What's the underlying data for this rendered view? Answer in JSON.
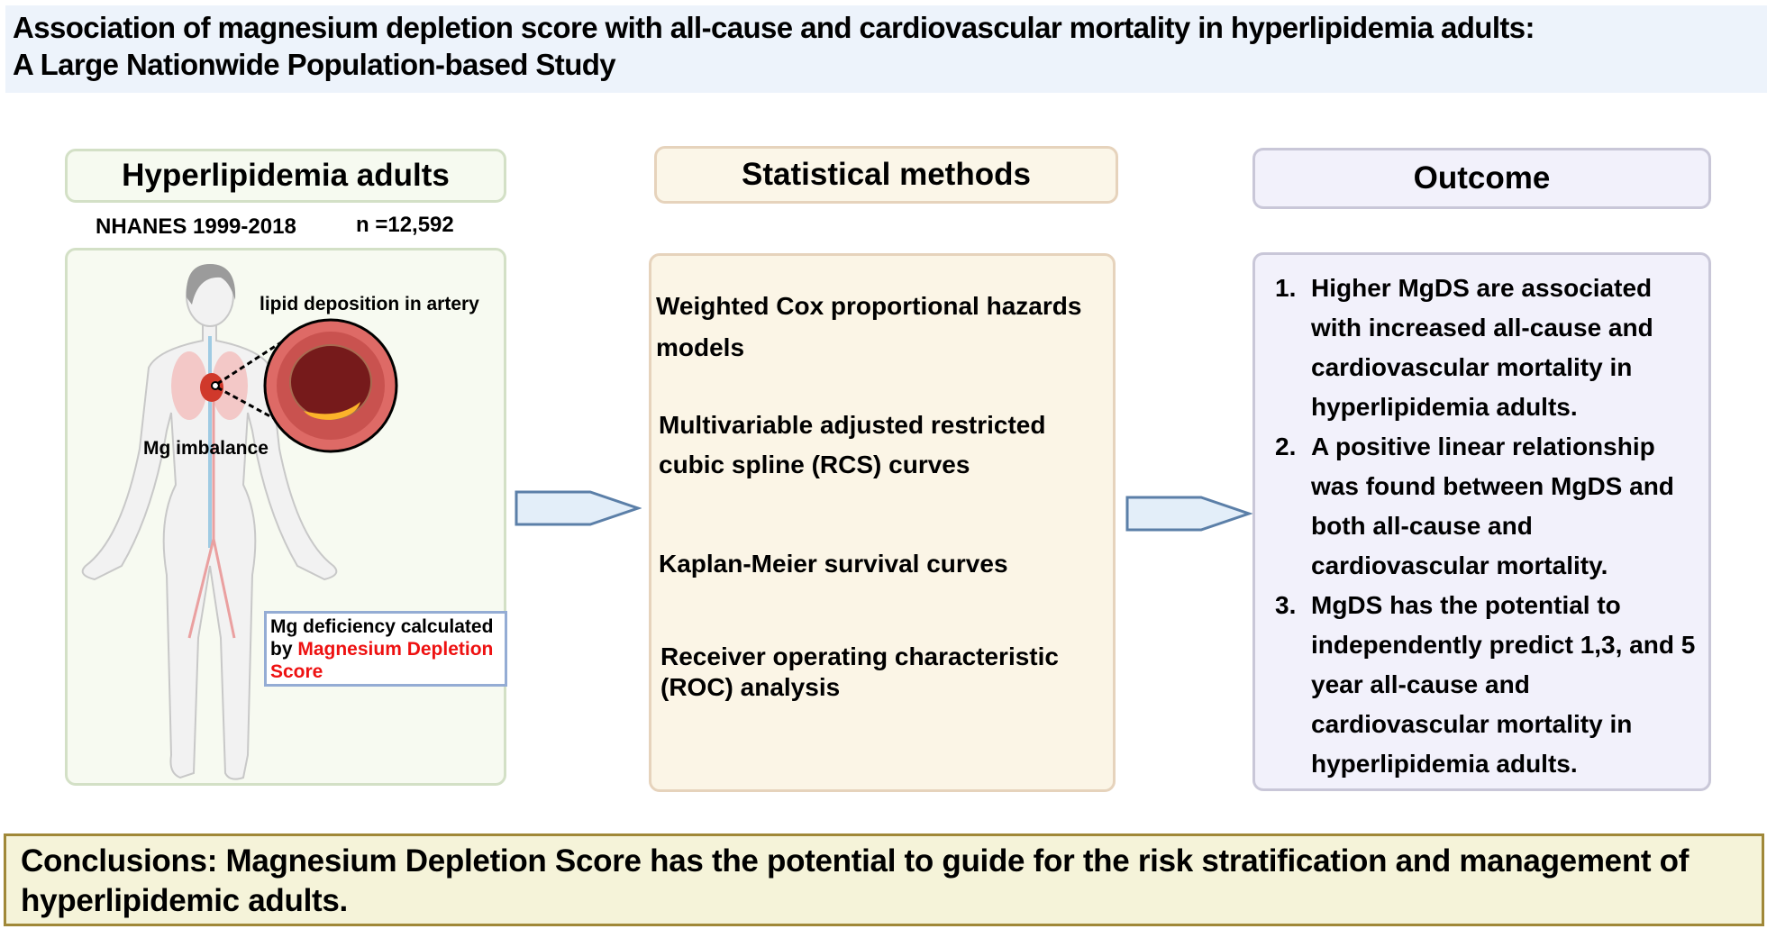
{
  "title": {
    "line1": "Association of magnesium depletion score with all-cause and cardiovascular mortality in hyperlipidemia adults:",
    "line2": "A Large Nationwide Population-based Study"
  },
  "population": {
    "header": "Hyperlipidemia adults",
    "dataset": "NHANES 1999-2018",
    "sample_size": "n =12,592",
    "lipid_label": "lipid deposition in artery",
    "mg_label": "Mg imbalance",
    "mgds_prefix": "Mg deficiency calculated by ",
    "mgds_highlight": "Magnesium Depletion Score"
  },
  "methods": {
    "header": "Statistical methods",
    "items": [
      "Weighted Cox proportional hazards models",
      "Multivariable adjusted restricted cubic spline (RCS) curves",
      "Kaplan-Meier survival curves",
      "Receiver operating characteristic (ROC) analysis"
    ]
  },
  "outcome": {
    "header": "Outcome",
    "items": [
      {
        "num": "1.",
        "text": "Higher MgDS are associated with increased all-cause and cardiovascular mortality in hyperlipidemia adults."
      },
      {
        "num": "2.",
        "text": "A positive linear relationship was found between MgDS and both all-cause and cardiovascular mortality."
      },
      {
        "num": "3.",
        "text": "MgDS has the potential to independently predict 1,3, and 5 year all-cause and cardiovascular mortality in hyperlipidemia adults."
      }
    ]
  },
  "conclusion": "Conclusions: Magnesium Depletion Score has the potential to guide for the risk stratification and management of hyperlipidemic adults.",
  "colors": {
    "highlight": "#ee1111",
    "arrow_fill": "#e3eef9",
    "arrow_stroke": "#5b7fa8"
  }
}
